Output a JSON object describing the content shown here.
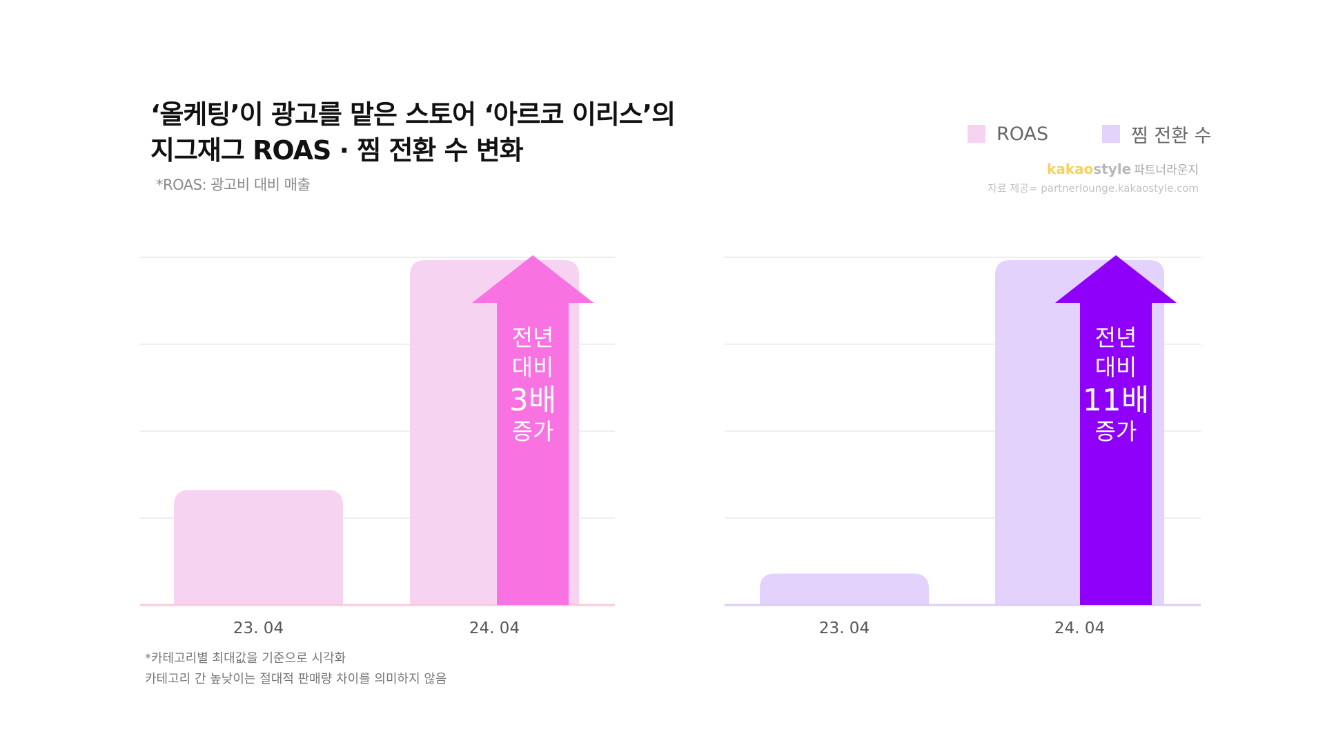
{
  "header": {
    "title_line1": "‘올케팅’이 광고를 맡은 스토어 ‘아르코 이리스’의",
    "title_line2": "지그재그 ROAS · 찜 전환 수 변화",
    "subtitle": "*ROAS: 광고비 대비 매출"
  },
  "legend": [
    {
      "label": "ROAS",
      "color": "#f7d3f2"
    },
    {
      "label": "찜 전환 수",
      "color": "#e3d2fb"
    }
  ],
  "brand": {
    "kakao": "kakao",
    "style": "style",
    "partner": "파트너라운지",
    "source": "자료 제공= partnerlounge.kakaostyle.com"
  },
  "colors": {
    "roas_bar": "#f7d3f2",
    "roas_arrow": "#f872e2",
    "roas_axis": "#f9c9d6",
    "jjim_bar": "#e3d2fb",
    "jjim_arrow": "#8e00fa",
    "jjim_axis": "#dccdf7",
    "grid": "#e9e9e9"
  },
  "chart_data": [
    {
      "type": "bar",
      "categories": [
        "23. 04",
        "24. 04"
      ],
      "series": [
        {
          "name": "ROAS",
          "values": [
            1,
            3
          ]
        }
      ],
      "ylim": [
        0,
        3
      ],
      "grid": true,
      "annotation": {
        "lines": [
          "전년",
          "대비"
        ],
        "emphasis": "3배",
        "tail": "증가"
      }
    },
    {
      "type": "bar",
      "categories": [
        "23. 04",
        "24. 04"
      ],
      "series": [
        {
          "name": "찜 전환 수",
          "values": [
            1,
            11
          ]
        }
      ],
      "ylim": [
        0,
        11
      ],
      "grid": true,
      "annotation": {
        "lines": [
          "전년",
          "대비"
        ],
        "emphasis": "11배",
        "tail": "증가"
      }
    }
  ],
  "footnote": {
    "line1": "*카테고리별 최대값을 기준으로 시각화",
    "line2": "카테고리 간 높낮이는 절대적 판매량 차이를 의미하지 않음"
  }
}
